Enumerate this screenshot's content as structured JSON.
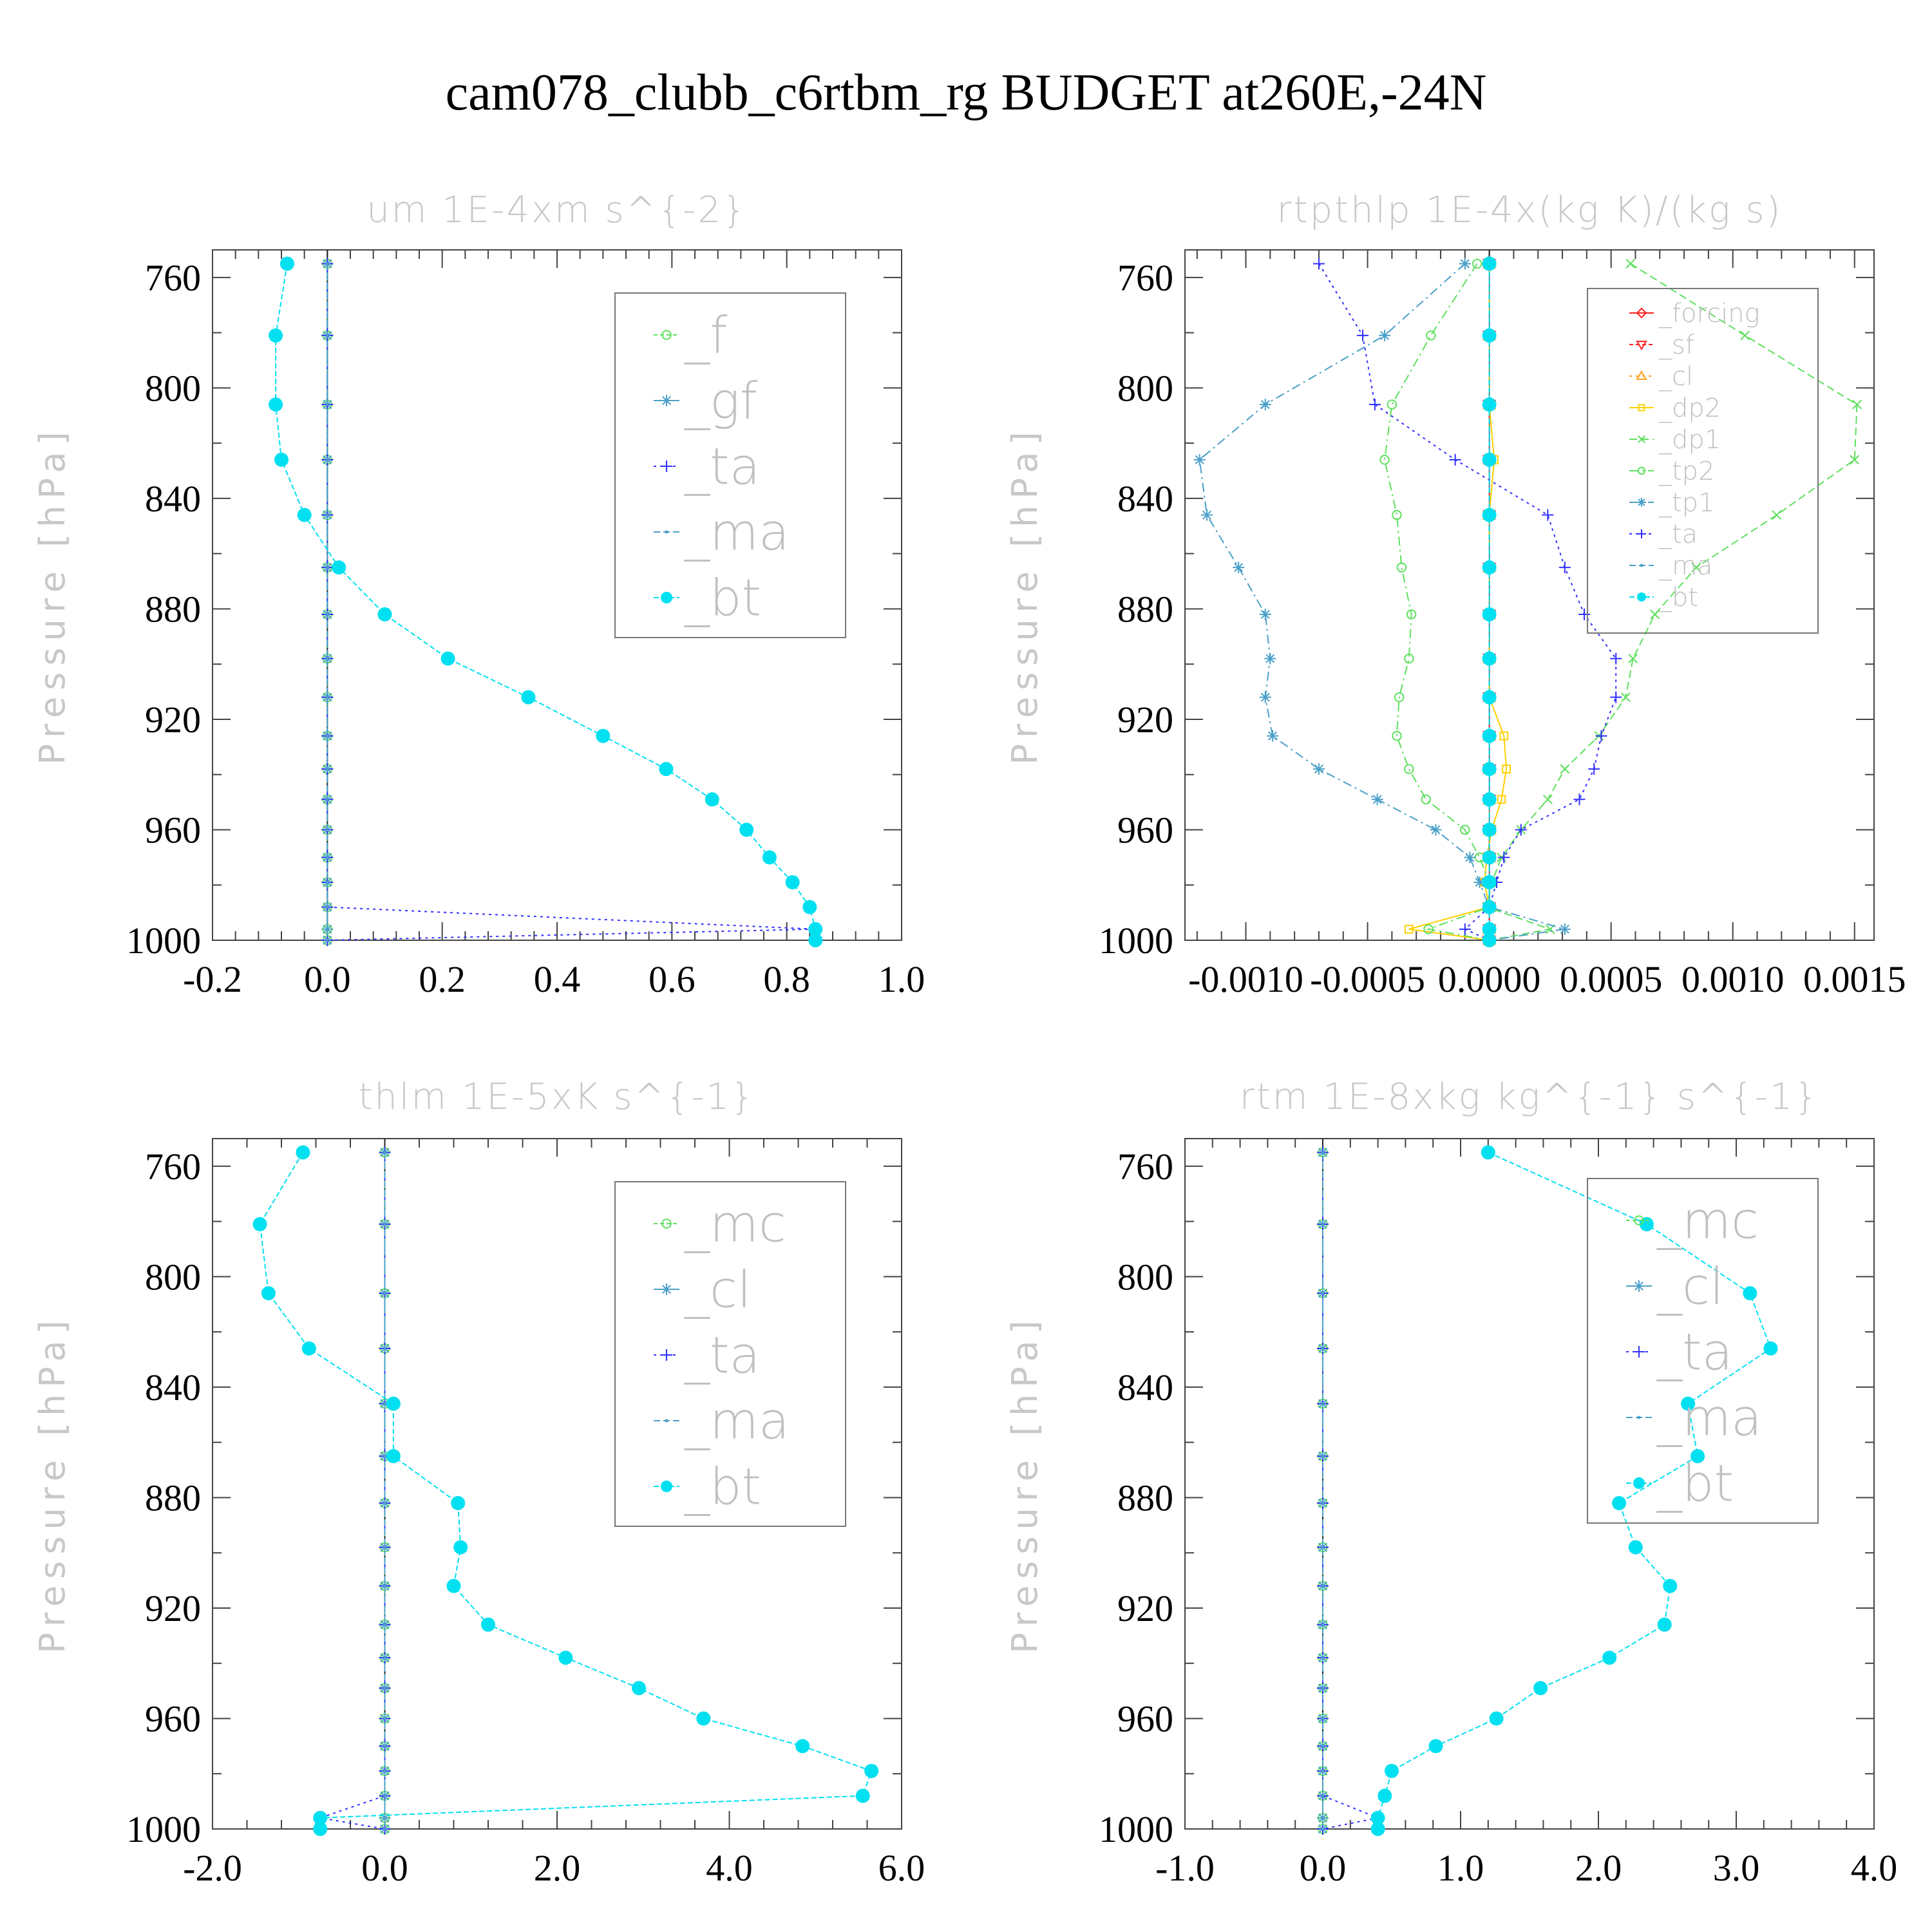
{
  "title": "cam078_clubb_c6rtbm_rg  BUDGET at260E,-24N",
  "colors": {
    "green": "#5ee05e",
    "teal": "#4aa0c8",
    "blue": "#3030ff",
    "cyan": "#00e0f0",
    "red": "#ff2020",
    "orange": "#ffa020",
    "yellow": "#ffd000",
    "frame": "#555555"
  },
  "chart_data": [
    {
      "type": "line",
      "title": "um  1E-4xm s^{-2}",
      "ylabel": "Pressure [hPa]",
      "xlim": [
        -0.2,
        1.0
      ],
      "ylim": [
        1000,
        750
      ],
      "xticks": [
        "-0.2",
        "0.0",
        "0.2",
        "0.4",
        "0.6",
        "0.8",
        "1.0"
      ],
      "yticks": [
        "760",
        "800",
        "840",
        "880",
        "920",
        "960",
        "1000"
      ],
      "legend": "top-right",
      "pressure": [
        755,
        781,
        806,
        826,
        846,
        865,
        882,
        898,
        912,
        926,
        938,
        949,
        960,
        970,
        979,
        988,
        996,
        1000
      ],
      "series": [
        {
          "name": "_f",
          "color": "green",
          "marker": "circle",
          "dash": "6,4",
          "values": [
            0,
            0,
            0,
            0,
            0,
            0,
            0,
            0,
            0,
            0,
            0,
            0,
            0,
            0,
            0,
            0,
            0,
            0
          ]
        },
        {
          "name": "_gf",
          "color": "teal",
          "marker": "star",
          "dash": "14,6,3,6",
          "values": [
            0,
            0,
            0,
            0,
            0,
            0,
            0,
            0,
            0,
            0,
            0,
            0,
            0,
            0,
            0,
            0,
            0,
            0
          ]
        },
        {
          "name": "_ta",
          "color": "blue",
          "marker": "plus",
          "dash": "4,6",
          "values": [
            0,
            0,
            0,
            0,
            0,
            0,
            0,
            0,
            0,
            0,
            0,
            0,
            0,
            0,
            0,
            0,
            0.85,
            0.0
          ]
        },
        {
          "name": "_ma",
          "color": "teal",
          "marker": "dot",
          "dash": "10,5",
          "values": [
            0,
            0,
            0,
            0,
            0,
            0,
            0,
            0,
            0,
            0,
            0,
            0,
            0,
            0,
            0,
            0,
            0,
            0
          ]
        },
        {
          "name": "_bt",
          "color": "cyan",
          "marker": "bigdot",
          "dash": "8,4",
          "values": [
            -0.07,
            -0.09,
            -0.09,
            -0.08,
            -0.04,
            0.02,
            0.1,
            0.21,
            0.35,
            0.48,
            0.59,
            0.67,
            0.73,
            0.77,
            0.81,
            0.84,
            0.85,
            0.85
          ]
        }
      ]
    },
    {
      "type": "line",
      "title": "rtpthlp  1E-4x(kg K)/(kg s)",
      "ylabel": "Pressure [hPa]",
      "xlim": [
        -0.00125,
        0.00158
      ],
      "ylim": [
        1000,
        750
      ],
      "xticks": [
        "-0.0010",
        "-0.0005",
        "0.0000",
        "0.0005",
        "0.0010",
        "0.0015"
      ],
      "yticks": [
        "760",
        "800",
        "840",
        "880",
        "920",
        "960",
        "1000"
      ],
      "legend": "top-right",
      "pressure": [
        755,
        781,
        806,
        826,
        846,
        865,
        882,
        898,
        912,
        926,
        938,
        949,
        960,
        970,
        979,
        988,
        996,
        1000
      ],
      "series": [
        {
          "name": "_forcing",
          "color": "red",
          "marker": "diamond",
          "dash": "",
          "values": [
            0,
            0,
            0,
            0,
            0,
            0,
            0,
            0,
            0,
            0,
            0,
            0,
            0,
            0,
            0,
            0,
            0,
            0
          ]
        },
        {
          "name": "_sf",
          "color": "red",
          "marker": "tridown",
          "dash": "6,4",
          "values": [
            0,
            0,
            0,
            0,
            0,
            0,
            0,
            0,
            0,
            0,
            0,
            0,
            0,
            0,
            0,
            0,
            0,
            0
          ]
        },
        {
          "name": "_cl",
          "color": "orange",
          "marker": "triup",
          "dash": "4,6",
          "values": [
            0,
            0,
            0,
            0,
            0,
            0,
            0,
            0,
            0,
            0,
            0,
            0,
            0,
            0,
            0,
            0,
            0,
            0
          ]
        },
        {
          "name": "_dp2",
          "color": "yellow",
          "marker": "square",
          "dash": "",
          "values": [
            0,
            0,
            0,
            2e-05,
            0,
            0,
            0,
            0,
            0,
            6e-05,
            7e-05,
            5e-05,
            1e-05,
            -1e-05,
            -2e-05,
            0,
            -0.00033,
            0
          ]
        },
        {
          "name": "_dp1",
          "color": "green",
          "marker": "cross",
          "dash": "12,6",
          "values": [
            0.00058,
            0.00105,
            0.00151,
            0.0015,
            0.00118,
            0.00085,
            0.00068,
            0.00059,
            0.00056,
            0.00045,
            0.00031,
            0.00024,
            0.00013,
            5e-05,
            1e-05,
            -1e-05,
            0.00025,
            0
          ]
        },
        {
          "name": "_tp2",
          "color": "green",
          "marker": "circle",
          "dash": "14,6,3,6",
          "values": [
            -5e-05,
            -0.00024,
            -0.0004,
            -0.00043,
            -0.00038,
            -0.00036,
            -0.00032,
            -0.00033,
            -0.00037,
            -0.00038,
            -0.00033,
            -0.00026,
            -0.0001,
            -4e-05,
            0,
            0,
            -0.00025,
            0
          ]
        },
        {
          "name": "_tp1",
          "color": "teal",
          "marker": "star",
          "dash": "14,6,3,6",
          "values": [
            -0.0001,
            -0.00043,
            -0.00092,
            -0.00119,
            -0.00116,
            -0.00103,
            -0.00092,
            -0.0009,
            -0.00092,
            -0.00089,
            -0.0007,
            -0.00046,
            -0.00022,
            -8e-05,
            -4e-05,
            0,
            0.00031,
            0
          ]
        },
        {
          "name": "_ta",
          "color": "blue",
          "marker": "plus",
          "dash": "4,6",
          "values": [
            -0.0007,
            -0.00052,
            -0.00047,
            -0.00014,
            0.00024,
            0.00031,
            0.00039,
            0.00052,
            0.00052,
            0.00046,
            0.00043,
            0.00037,
            0.00013,
            6e-05,
            3e-05,
            0,
            -0.0001,
            0
          ]
        },
        {
          "name": "_ma",
          "color": "teal",
          "marker": "dot",
          "dash": "10,5",
          "values": [
            0,
            0,
            0,
            0,
            0,
            0,
            0,
            0,
            0,
            0,
            0,
            0,
            0,
            0,
            0,
            0,
            0,
            0
          ]
        },
        {
          "name": "_bt",
          "color": "cyan",
          "marker": "bigdot",
          "dash": "8,4",
          "values": [
            0,
            0,
            0,
            0,
            0,
            0,
            0,
            0,
            0,
            0,
            0,
            0,
            0,
            0,
            0,
            0,
            0,
            0
          ]
        }
      ]
    },
    {
      "type": "line",
      "title": "thlm  1E-5xK s^{-1}",
      "ylabel": "Pressure [hPa]",
      "xlim": [
        -2.0,
        6.0
      ],
      "ylim": [
        1000,
        750
      ],
      "xticks": [
        "-2.0",
        "0.0",
        "2.0",
        "4.0",
        "6.0"
      ],
      "yticks": [
        "760",
        "800",
        "840",
        "880",
        "920",
        "960",
        "1000"
      ],
      "legend": "top-right",
      "pressure": [
        755,
        781,
        806,
        826,
        846,
        865,
        882,
        898,
        912,
        926,
        938,
        949,
        960,
        970,
        979,
        988,
        996,
        1000
      ],
      "series": [
        {
          "name": "_mc",
          "color": "green",
          "marker": "circle",
          "dash": "6,4",
          "values": [
            0,
            0,
            0,
            0,
            0,
            0,
            0,
            0,
            0,
            0,
            0,
            0,
            0,
            0,
            0,
            0,
            0,
            0
          ]
        },
        {
          "name": "_cl",
          "color": "teal",
          "marker": "star",
          "dash": "14,6,3,6",
          "values": [
            0,
            0,
            0,
            0,
            0,
            0,
            0,
            0,
            0,
            0,
            0,
            0,
            0,
            0,
            0,
            0,
            0,
            0
          ]
        },
        {
          "name": "_ta",
          "color": "blue",
          "marker": "plus",
          "dash": "4,6",
          "values": [
            0,
            0,
            0,
            0,
            0,
            0,
            0,
            0,
            0,
            0,
            0,
            0,
            0,
            0,
            0,
            0,
            -0.75,
            0
          ]
        },
        {
          "name": "_ma",
          "color": "teal",
          "marker": "dot",
          "dash": "10,5",
          "values": [
            0,
            0,
            0,
            0,
            0,
            0,
            0,
            0,
            0,
            0,
            0,
            0,
            0,
            0,
            0,
            0,
            0,
            0
          ]
        },
        {
          "name": "_bt",
          "color": "cyan",
          "marker": "bigdot",
          "dash": "8,4",
          "values": [
            -0.95,
            -1.45,
            -1.35,
            -0.88,
            0.1,
            0.1,
            0.85,
            0.88,
            0.8,
            1.2,
            2.1,
            2.95,
            3.7,
            4.85,
            5.65,
            5.55,
            -0.75,
            -0.75
          ]
        }
      ]
    },
    {
      "type": "line",
      "title": "rtm  1E-8xkg kg^{-1} s^{-1}",
      "ylabel": "Pressure [hPa]",
      "xlim": [
        -1.0,
        4.0
      ],
      "ylim": [
        1000,
        750
      ],
      "xticks": [
        "-1.0",
        "0.0",
        "1.0",
        "2.0",
        "3.0",
        "4.0"
      ],
      "yticks": [
        "760",
        "800",
        "840",
        "880",
        "920",
        "960",
        "1000"
      ],
      "legend": "top-right",
      "pressure": [
        755,
        781,
        806,
        826,
        846,
        865,
        882,
        898,
        912,
        926,
        938,
        949,
        960,
        970,
        979,
        988,
        996,
        1000
      ],
      "series": [
        {
          "name": "_mc",
          "color": "green",
          "marker": "circle",
          "dash": "6,4",
          "values": [
            0,
            0,
            0,
            0,
            0,
            0,
            0,
            0,
            0,
            0,
            0,
            0,
            0,
            0,
            0,
            0,
            0,
            0
          ]
        },
        {
          "name": "_cl",
          "color": "teal",
          "marker": "star",
          "dash": "14,6,3,6",
          "values": [
            0,
            0,
            0,
            0,
            0,
            0,
            0,
            0,
            0,
            0,
            0,
            0,
            0,
            0,
            0,
            0,
            0,
            0
          ]
        },
        {
          "name": "_ta",
          "color": "blue",
          "marker": "plus",
          "dash": "4,6",
          "values": [
            0,
            0,
            0,
            0,
            0,
            0,
            0,
            0,
            0,
            0,
            0,
            0,
            0,
            0,
            0,
            0,
            0.4,
            0
          ]
        },
        {
          "name": "_ma",
          "color": "teal",
          "marker": "dot",
          "dash": "10,5",
          "values": [
            0,
            0,
            0,
            0,
            0,
            0,
            0,
            0,
            0,
            0,
            0,
            0,
            0,
            0,
            0,
            0,
            0,
            0
          ]
        },
        {
          "name": "_bt",
          "color": "cyan",
          "marker": "bigdot",
          "dash": "8,4",
          "values": [
            1.2,
            2.35,
            3.1,
            3.25,
            2.65,
            2.72,
            2.15,
            2.27,
            2.52,
            2.48,
            2.08,
            1.58,
            1.26,
            0.82,
            0.5,
            0.45,
            0.4,
            0.4
          ]
        }
      ]
    }
  ]
}
